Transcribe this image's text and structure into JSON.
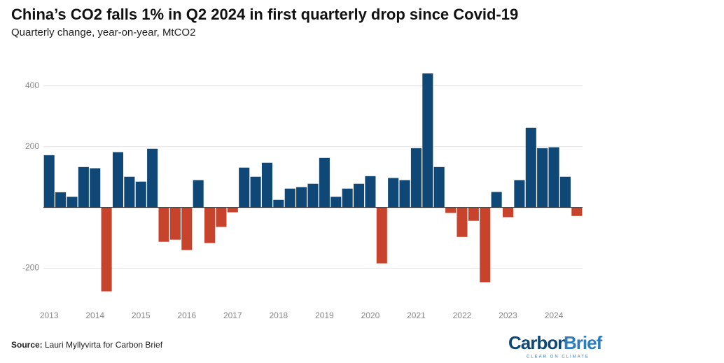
{
  "chart_data": {
    "type": "bar",
    "title": "China’s CO2 falls 1% in Q2 2024 in first quarterly drop since Covid-19",
    "subtitle": "Quarterly change, year-on-year, MtCO2",
    "categories": [
      "2013",
      null,
      null,
      null,
      "2014",
      null,
      null,
      null,
      "2015",
      null,
      null,
      null,
      "2016",
      null,
      null,
      null,
      "2017",
      null,
      null,
      null,
      "2018",
      null,
      null,
      null,
      "2019",
      null,
      null,
      null,
      "2020",
      null,
      null,
      null,
      "2021",
      null,
      null,
      null,
      "2022",
      null,
      null,
      null,
      "2023",
      null,
      null,
      null,
      "2024",
      null,
      null
    ],
    "values": [
      172,
      50,
      35,
      133,
      129,
      -276,
      182,
      101,
      85,
      193,
      -113,
      -106,
      -140,
      90,
      -117,
      -64,
      -16,
      131,
      101,
      147,
      25,
      62,
      67,
      78,
      163,
      35,
      62,
      78,
      103,
      -184,
      97,
      90,
      195,
      441,
      133,
      -18,
      -97,
      -44,
      -246,
      51,
      -32,
      90,
      262,
      195,
      198,
      101,
      -28
    ],
    "positive_color": "#0f4777",
    "negative_color": "#c8432b",
    "ylim": [
      -300,
      480
    ],
    "yticks": [
      -200,
      200,
      400
    ],
    "grid": true,
    "source_label": "Source:",
    "source": "Lauri Myllyvirta for Carbon Brief",
    "logo": {
      "first": "Carbon",
      "second": "Brief",
      "tagline": "CLEAR ON CLIMATE"
    }
  }
}
